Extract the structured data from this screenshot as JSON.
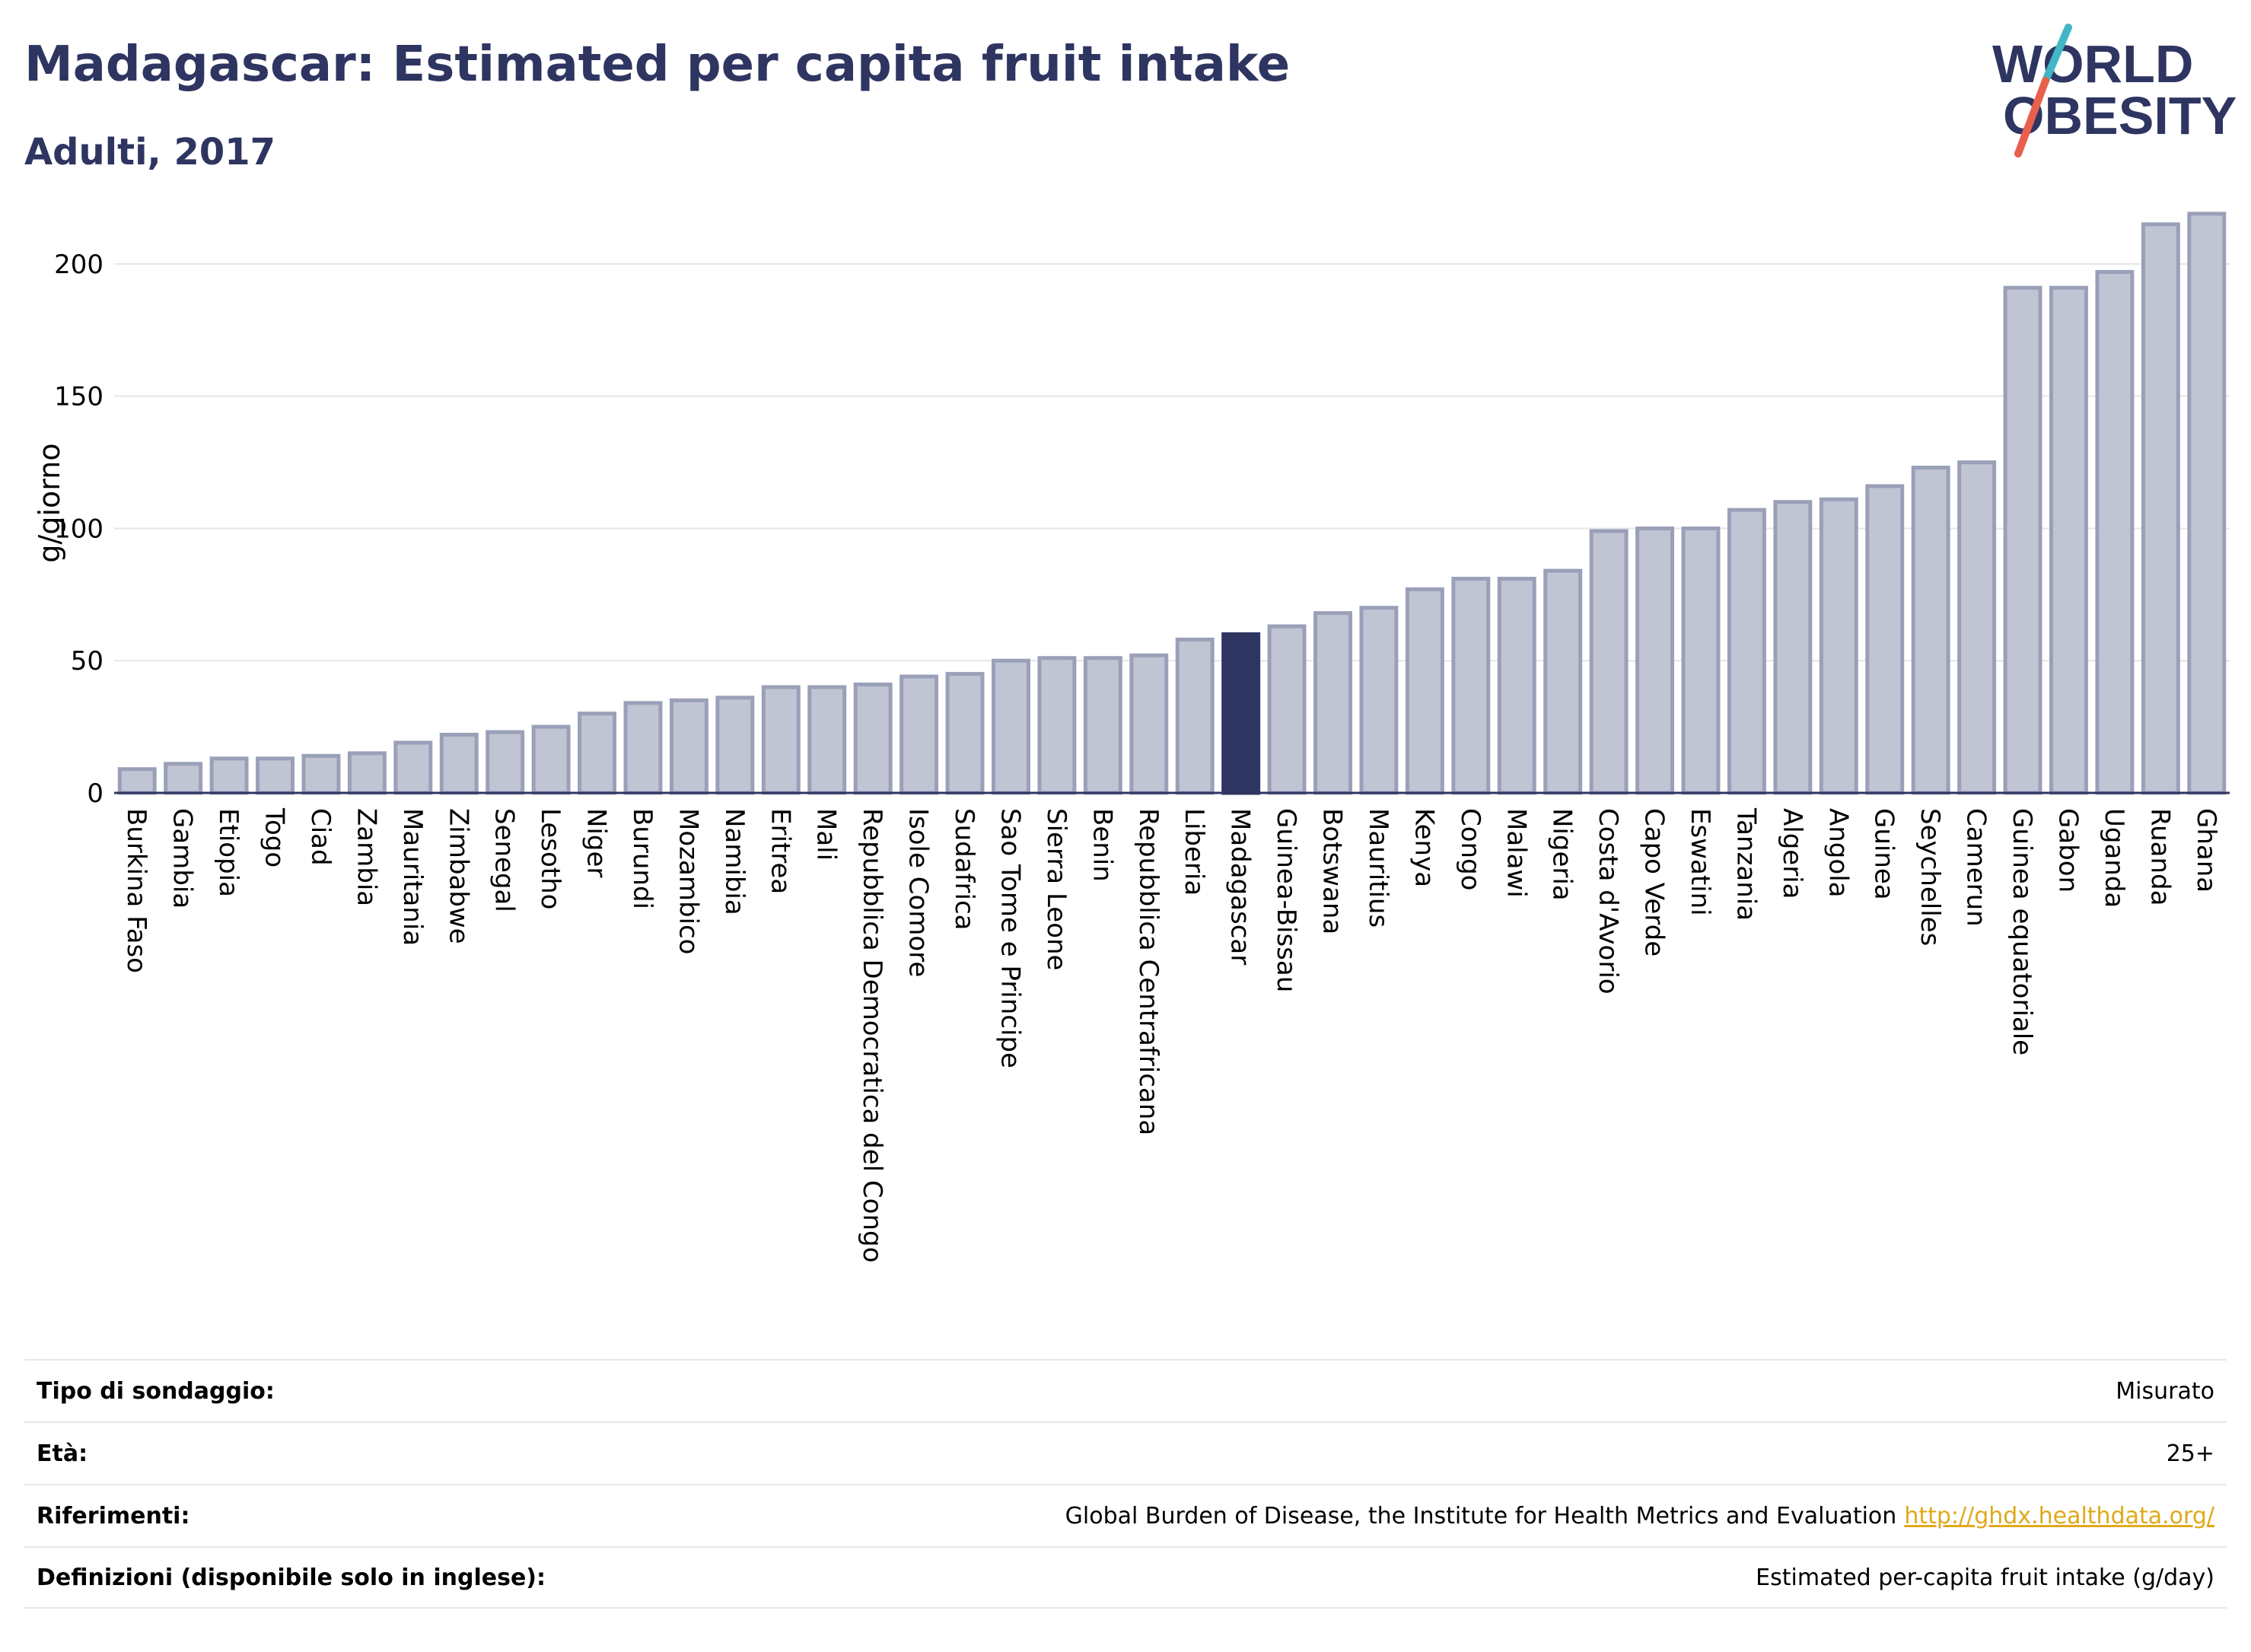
{
  "header": {
    "title": "Madagascar: Estimated per capita fruit intake",
    "subtitle": "Adulti, 2017"
  },
  "logo": {
    "line1": "WORLD",
    "line2": "OBESITY",
    "colors": {
      "text": "#2e3561",
      "slash_top": "#41b6c4",
      "slash_bottom": "#e8604c"
    }
  },
  "colors": {
    "bar": "#c0c4d3",
    "bar_stroke": "#9aa0b8",
    "highlight": "#2e3561",
    "grid": "#e6e6e6",
    "axis": "#2e3561"
  },
  "chart_data": {
    "type": "bar",
    "title": "Madagascar: Estimated per capita fruit intake",
    "subtitle": "Adulti, 2017",
    "ylabel": "g/giorno",
    "xlabel": "",
    "ylim": [
      0,
      225
    ],
    "yticks": [
      0,
      50,
      100,
      150,
      200
    ],
    "grid": true,
    "highlight": "Madagascar",
    "categories": [
      "Burkina Faso",
      "Gambia",
      "Etiopia",
      "Togo",
      "Ciad",
      "Zambia",
      "Mauritania",
      "Zimbabwe",
      "Senegal",
      "Lesotho",
      "Niger",
      "Burundi",
      "Mozambico",
      "Namibia",
      "Eritrea",
      "Mali",
      "Repubblica Democratica del Congo",
      "Isole Comore",
      "Sudafrica",
      "Sao Tome e Principe",
      "Sierra Leone",
      "Benin",
      "Repubblica Centrafricana",
      "Liberia",
      "Madagascar",
      "Guinea-Bissau",
      "Botswana",
      "Mauritius",
      "Kenya",
      "Congo",
      "Malawi",
      "Nigeria",
      "Costa d'Avorio",
      "Capo Verde",
      "Eswatini",
      "Tanzania",
      "Algeria",
      "Angola",
      "Guinea",
      "Seychelles",
      "Camerun",
      "Guinea equatoriale",
      "Gabon",
      "Uganda",
      "Ruanda",
      "Ghana"
    ],
    "values": [
      9,
      11,
      13,
      13,
      14,
      15,
      19,
      22,
      23,
      25,
      30,
      34,
      35,
      36,
      40,
      40,
      41,
      44,
      45,
      50,
      51,
      51,
      52,
      58,
      60,
      63,
      68,
      70,
      77,
      81,
      81,
      84,
      99,
      100,
      100,
      107,
      110,
      111,
      116,
      123,
      125,
      191,
      191,
      197,
      215,
      219
    ]
  },
  "footer": {
    "rows": [
      {
        "label": "Tipo di sondaggio:",
        "value": "Misurato"
      },
      {
        "label": "Età:",
        "value": "25+"
      },
      {
        "label": "Riferimenti:",
        "value": "Global Burden of Disease, the Institute for Health Metrics and Evaluation",
        "link": "http://ghdx.healthdata.org/"
      },
      {
        "label": "Definizioni (disponibile solo in inglese):",
        "value": "Estimated per-capita fruit intake (g/day)"
      }
    ]
  }
}
